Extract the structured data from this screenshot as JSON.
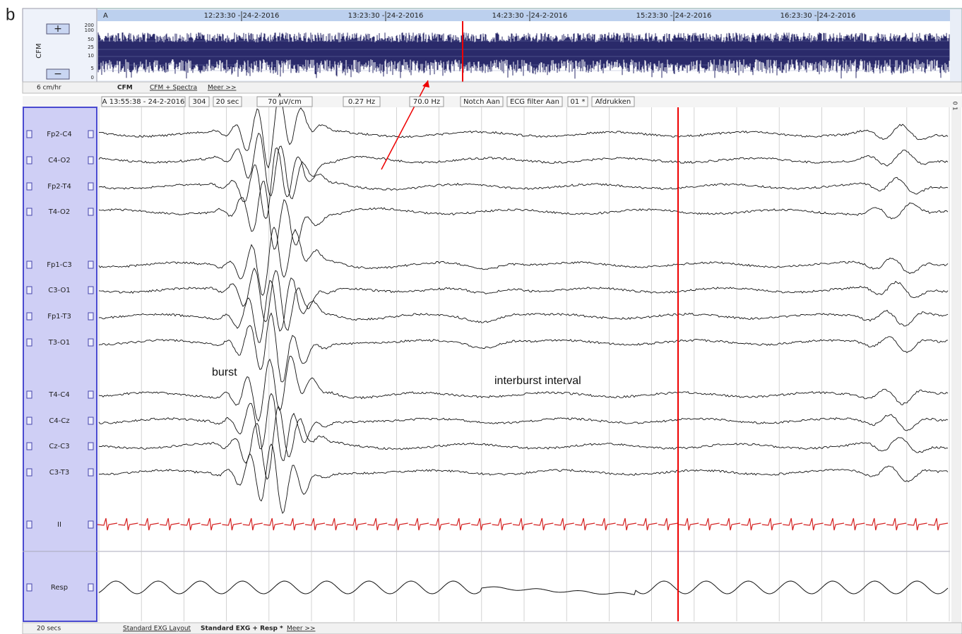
{
  "figure_label": "b",
  "cfm_panel": {
    "channel": "A",
    "times": [
      "12:23:30 - 24-2-2016",
      "13:23:30 - 24-2-2016",
      "14:23:30 - 24-2-2016",
      "15:23:30 - 24-2-2016",
      "16:23:30 - 24-2-2016"
    ],
    "scale": [
      "200",
      "100",
      "50",
      "25",
      "10",
      "5",
      "0"
    ],
    "axis_label": "CFM",
    "speed": "6 cm/hr",
    "tabs": [
      "CFM",
      "CFM + Spectra",
      "Meer >>"
    ]
  },
  "toolbar": {
    "items": [
      "A 13:55:38 - 24-2-2016",
      "304",
      "20 sec",
      "70 µV/cm",
      "0.27 Hz",
      "70.0 Hz",
      "Notch Aan",
      "ECG filter Aan",
      "01 *",
      "Afdrukken"
    ],
    "side_label": "0 1"
  },
  "channels": [
    "Fp2-C4",
    "C4-O2",
    "Fp2-T4",
    "T4-O2",
    "Fp1-C3",
    "C3-O1",
    "Fp1-T3",
    "T3-O1",
    "T4-C4",
    "C4-Cz",
    "Cz-C3",
    "C3-T3",
    "II"
  ],
  "resp_channel": "Resp",
  "annotations": [
    "burst",
    "interburst interval"
  ],
  "footer": {
    "speed": "20 secs",
    "tabs": [
      "Standard EXG Layout",
      "Standard EXG + Resp *",
      "Meer >>"
    ]
  }
}
